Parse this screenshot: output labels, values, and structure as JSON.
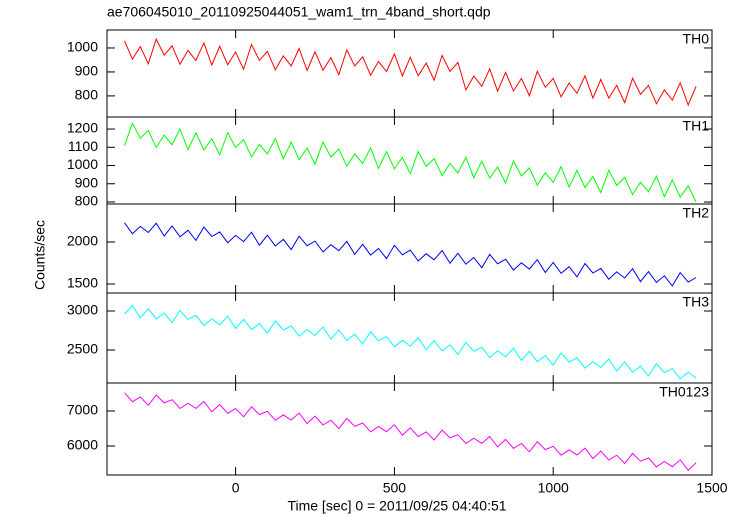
{
  "chart_data": {
    "type": "line",
    "title": "ae706045010_20110925044051_wam1_trn_4band_short.qdp",
    "xlabel": "Time [sec] 0 = 2011/09/25 04:40:51",
    "ylabel": "Counts/sec",
    "xlim": [
      -405,
      1500
    ],
    "xticks": [
      0,
      500,
      1000,
      1500
    ],
    "x": [
      -350,
      -325,
      -300,
      -275,
      -250,
      -225,
      -200,
      -175,
      -150,
      -125,
      -100,
      -75,
      -50,
      -25,
      0,
      25,
      50,
      75,
      100,
      125,
      150,
      175,
      200,
      225,
      250,
      275,
      300,
      325,
      350,
      375,
      400,
      425,
      450,
      475,
      500,
      525,
      550,
      575,
      600,
      625,
      650,
      675,
      700,
      725,
      750,
      775,
      800,
      825,
      850,
      875,
      900,
      925,
      950,
      975,
      1000,
      1025,
      1050,
      1075,
      1100,
      1125,
      1150,
      1175,
      1200,
      1225,
      1250,
      1275,
      1300,
      1325,
      1350,
      1375,
      1400,
      1425,
      1450
    ],
    "series": [
      {
        "name": "TH0",
        "color": "#ff0000",
        "ylim": [
          712,
          1075
        ],
        "yticks": [
          800,
          900,
          1000
        ],
        "values": [
          1030,
          953,
          1006,
          934,
          1037,
          970,
          1009,
          932,
          990,
          948,
          1021,
          929,
          1007,
          930,
          983,
          911,
          1015,
          948,
          986,
          909,
          967,
          925,
          998,
          906,
          984,
          907,
          960,
          889,
          992,
          925,
          963,
          886,
          944,
          902,
          975,
          883,
          961,
          884,
          937,
          866,
          969,
          902,
          940,
          825,
          883,
          840,
          913,
          820,
          898,
          820,
          873,
          801,
          903,
          836,
          873,
          796,
          854,
          811,
          884,
          791,
          869,
          791,
          844,
          772,
          874,
          807,
          844,
          767,
          825,
          782,
          855,
          762,
          840
        ]
      },
      {
        "name": "TH1",
        "color": "#00ff00",
        "ylim": [
          789,
          1266
        ],
        "yticks": [
          800,
          900,
          1000,
          1100,
          1200
        ],
        "values": [
          1110,
          1232,
          1149,
          1193,
          1099,
          1167,
          1114,
          1200,
          1088,
          1179,
          1085,
          1147,
          1058,
          1180,
          1098,
          1142,
          1047,
          1115,
          1063,
          1148,
          1036,
          1128,
          1033,
          1095,
          1007,
          1129,
          1046,
          1090,
          996,
          1063,
          1011,
          1097,
          984,
          1076,
          982,
          1044,
          955,
          1077,
          995,
          1038,
          944,
          1012,
          959,
          1045,
          933,
          1025,
          930,
          992,
          904,
          1025,
          943,
          987,
          892,
          960,
          908,
          994,
          881,
          973,
          879,
          940,
          852,
          974,
          891,
          935,
          841,
          908,
          856,
          942,
          829,
          921,
          827,
          888,
          800
        ]
      },
      {
        "name": "TH2",
        "color": "#0000ff",
        "ylim": [
          1393,
          2452
        ],
        "yticks": [
          1500,
          2000
        ],
        "values": [
          2228,
          2099,
          2186,
          2113,
          2224,
          2071,
          2190,
          2061,
          2140,
          2019,
          2178,
          2065,
          2120,
          1991,
          2078,
          2005,
          2116,
          1962,
          2081,
          1952,
          2031,
          1910,
          2069,
          1956,
          2011,
          1882,
          1969,
          1896,
          2007,
          1854,
          1973,
          1844,
          1923,
          1802,
          1961,
          1848,
          1903,
          1774,
          1861,
          1788,
          1899,
          1746,
          1865,
          1736,
          1815,
          1694,
          1853,
          1740,
          1795,
          1666,
          1752,
          1679,
          1790,
          1637,
          1756,
          1627,
          1706,
          1585,
          1744,
          1631,
          1686,
          1557,
          1644,
          1571,
          1682,
          1529,
          1648,
          1519,
          1598,
          1477,
          1636,
          1523,
          1578
        ]
      },
      {
        "name": "TH3",
        "color": "#00ffff",
        "ylim": [
          2077,
          3231
        ],
        "yticks": [
          2500,
          3000
        ],
        "values": [
          2960,
          3069,
          2913,
          3030,
          2898,
          2975,
          2852,
          3008,
          2893,
          2945,
          2814,
          2899,
          2823,
          2932,
          2777,
          2893,
          2762,
          2838,
          2715,
          2872,
          2756,
          2809,
          2677,
          2762,
          2687,
          2795,
          2640,
          2756,
          2625,
          2702,
          2578,
          2735,
          2620,
          2672,
          2541,
          2625,
          2550,
          2659,
          2503,
          2620,
          2488,
          2565,
          2442,
          2598,
          2483,
          2535,
          2404,
          2489,
          2413,
          2522,
          2367,
          2483,
          2352,
          2428,
          2305,
          2462,
          2346,
          2399,
          2267,
          2352,
          2277,
          2385,
          2230,
          2347,
          2215,
          2292,
          2168,
          2325,
          2210,
          2262,
          2131,
          2215,
          2140
        ]
      },
      {
        "name": "TH0123",
        "color": "#ff00ff",
        "ylim": [
          5171,
          7800
        ],
        "yticks": [
          6000,
          7000
        ],
        "values": [
          7520,
          7267,
          7404,
          7167,
          7454,
          7231,
          7323,
          7071,
          7223,
          7075,
          7272,
          6974,
          7187,
          6934,
          7071,
          6833,
          7121,
          6898,
          6990,
          6737,
          6889,
          6742,
          6939,
          6641,
          6853,
          6601,
          6738,
          6500,
          6787,
          6564,
          6657,
          6404,
          6556,
          6408,
          6606,
          6308,
          6520,
          6267,
          6404,
          6167,
          6454,
          6231,
          6323,
          6071,
          6223,
          6075,
          6272,
          5974,
          6187,
          5934,
          6071,
          5833,
          6121,
          5898,
          5990,
          5737,
          5889,
          5742,
          5939,
          5641,
          5853,
          5601,
          5738,
          5500,
          5787,
          5564,
          5657,
          5404,
          5556,
          5408,
          5606,
          5308,
          5520
        ]
      }
    ]
  }
}
